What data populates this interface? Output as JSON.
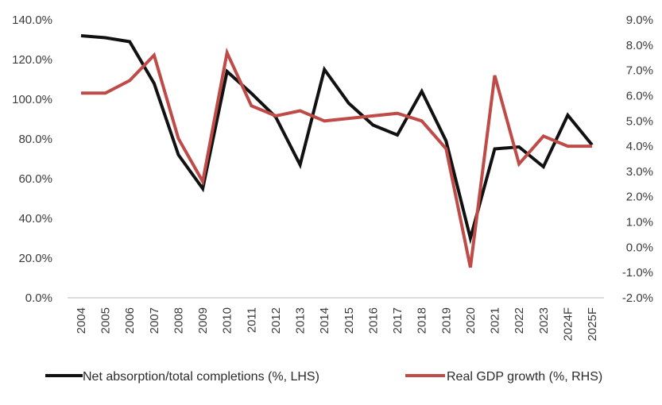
{
  "chart_data": {
    "type": "line",
    "title": "",
    "xlabel": "",
    "ylabel": "",
    "categories": [
      "2004",
      "2005",
      "2006",
      "2007",
      "2008",
      "2009",
      "2010",
      "2011",
      "2012",
      "2013",
      "2014",
      "2015",
      "2016",
      "2017",
      "2018",
      "2019",
      "2020",
      "2021",
      "2022",
      "2023",
      "2024F",
      "2025F"
    ],
    "y_left": {
      "range": [
        0,
        140
      ],
      "ticks": [
        0,
        20,
        40,
        60,
        80,
        100,
        120,
        140
      ],
      "tick_labels": [
        "0.0%",
        "20.0%",
        "40.0%",
        "60.0%",
        "80.0%",
        "100.0%",
        "120.0%",
        "140.0%"
      ]
    },
    "y_right": {
      "range": [
        -2,
        9
      ],
      "ticks": [
        -2,
        -1,
        0,
        1,
        2,
        3,
        4,
        5,
        6,
        7,
        8,
        9
      ],
      "tick_labels": [
        "-2.0%",
        "-1.0%",
        "0.0%",
        "1.0%",
        "2.0%",
        "3.0%",
        "4.0%",
        "5.0%",
        "6.0%",
        "7.0%",
        "8.0%",
        "9.0%"
      ]
    },
    "series": [
      {
        "name": "Net absorption/total completions (%, LHS)",
        "axis": "left",
        "color": "#111111",
        "values": [
          132,
          131,
          129,
          108,
          72,
          55,
          114,
          103,
          91,
          67,
          115,
          98,
          87,
          82,
          104,
          79,
          30,
          75,
          76,
          66,
          92,
          77
        ]
      },
      {
        "name": "Real GDP growth  (%, RHS)",
        "axis": "right",
        "color": "#be4b48",
        "values": [
          6.1,
          6.1,
          6.6,
          7.6,
          4.3,
          2.6,
          7.7,
          5.6,
          5.2,
          5.4,
          5.0,
          5.1,
          5.2,
          5.3,
          5.0,
          3.9,
          -0.8,
          6.8,
          3.3,
          4.4,
          4.0,
          4.0
        ]
      }
    ],
    "legend": {
      "placement": "bottom",
      "items": [
        "Net absorption/total completions (%, LHS)",
        "Real GDP growth  (%, RHS)"
      ]
    },
    "grid": false
  }
}
